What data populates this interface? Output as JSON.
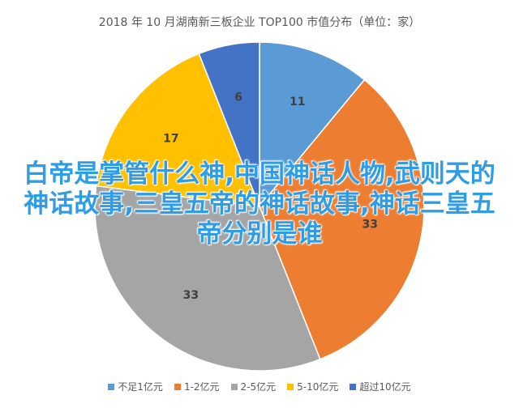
{
  "chart_data": {
    "type": "pie",
    "title": "2018 年 10 月湖南新三板企业 TOP100 市值分布（单位：家）",
    "categories": [
      "不足1亿元",
      "1-2亿元",
      "2-5亿元",
      "5-10亿元",
      "超过10亿元"
    ],
    "values": [
      11,
      33,
      33,
      17,
      6
    ],
    "colors": [
      "#5B9BD5",
      "#ED7D31",
      "#A5A5A5",
      "#FFC000",
      "#4472C4"
    ],
    "legend_position": "bottom"
  },
  "overlay_text": "白帝是掌管什么神,中国神话人物,武则天的神话故事,三皇五帝的神话故事,神话三皇五帝分别是谁"
}
